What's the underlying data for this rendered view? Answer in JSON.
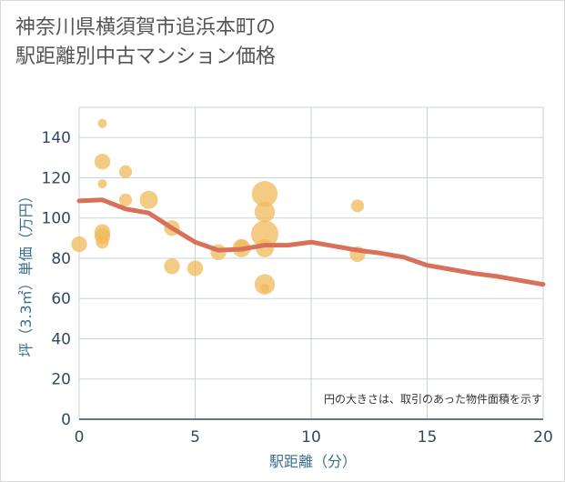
{
  "title_line1": "神奈川県横須賀市追浜本町の",
  "title_line2": "駅距離別中古マンション価格",
  "chart_data": {
    "type": "scatter",
    "title": "神奈川県横須賀市追浜本町の駅距離別中古マンション価格",
    "xlabel": "駅距離（分）",
    "ylabel": "坪（3.3㎡）単価（万円）",
    "xlim": [
      0,
      20
    ],
    "ylim": [
      0,
      155
    ],
    "xticks": [
      0,
      5,
      10,
      15,
      20
    ],
    "yticks": [
      0,
      20,
      40,
      60,
      80,
      100,
      120,
      140
    ],
    "grid": true,
    "note": "円の大きさは、取引のあった物件面積を示す",
    "bubble_color": "#f0b95a",
    "line_color": "#d9705a",
    "points": [
      {
        "x": 0,
        "y": 87,
        "size": 3
      },
      {
        "x": 1,
        "y": 147,
        "size": 1
      },
      {
        "x": 1,
        "y": 128,
        "size": 3
      },
      {
        "x": 1,
        "y": 117,
        "size": 1
      },
      {
        "x": 1,
        "y": 93,
        "size": 3
      },
      {
        "x": 1,
        "y": 91,
        "size": 3
      },
      {
        "x": 1,
        "y": 88,
        "size": 2
      },
      {
        "x": 2,
        "y": 123,
        "size": 2
      },
      {
        "x": 2,
        "y": 109,
        "size": 2
      },
      {
        "x": 3,
        "y": 109,
        "size": 4
      },
      {
        "x": 4,
        "y": 95,
        "size": 3
      },
      {
        "x": 4,
        "y": 76,
        "size": 3
      },
      {
        "x": 5,
        "y": 75,
        "size": 3
      },
      {
        "x": 6,
        "y": 83,
        "size": 3
      },
      {
        "x": 7,
        "y": 85,
        "size": 4
      },
      {
        "x": 7,
        "y": 86,
        "size": 2
      },
      {
        "x": 8,
        "y": 112,
        "size": 8
      },
      {
        "x": 8,
        "y": 103,
        "size": 5
      },
      {
        "x": 8,
        "y": 92,
        "size": 9
      },
      {
        "x": 8,
        "y": 85,
        "size": 4
      },
      {
        "x": 8,
        "y": 67,
        "size": 5
      },
      {
        "x": 8,
        "y": 65,
        "size": 1
      },
      {
        "x": 12,
        "y": 106,
        "size": 2
      },
      {
        "x": 12,
        "y": 82,
        "size": 3
      }
    ],
    "series": [
      {
        "name": "平均単価",
        "x": [
          0,
          1,
          2,
          3,
          4,
          5,
          6,
          7,
          8,
          9,
          10,
          11,
          12,
          13,
          14,
          15,
          16,
          17,
          18,
          19,
          20
        ],
        "y": [
          108.5,
          109,
          104.5,
          102.5,
          95,
          88,
          84,
          84.5,
          86.5,
          86.5,
          88,
          86,
          84,
          82.5,
          80.5,
          76.5,
          74.5,
          72.5,
          71,
          69,
          67
        ]
      }
    ]
  }
}
